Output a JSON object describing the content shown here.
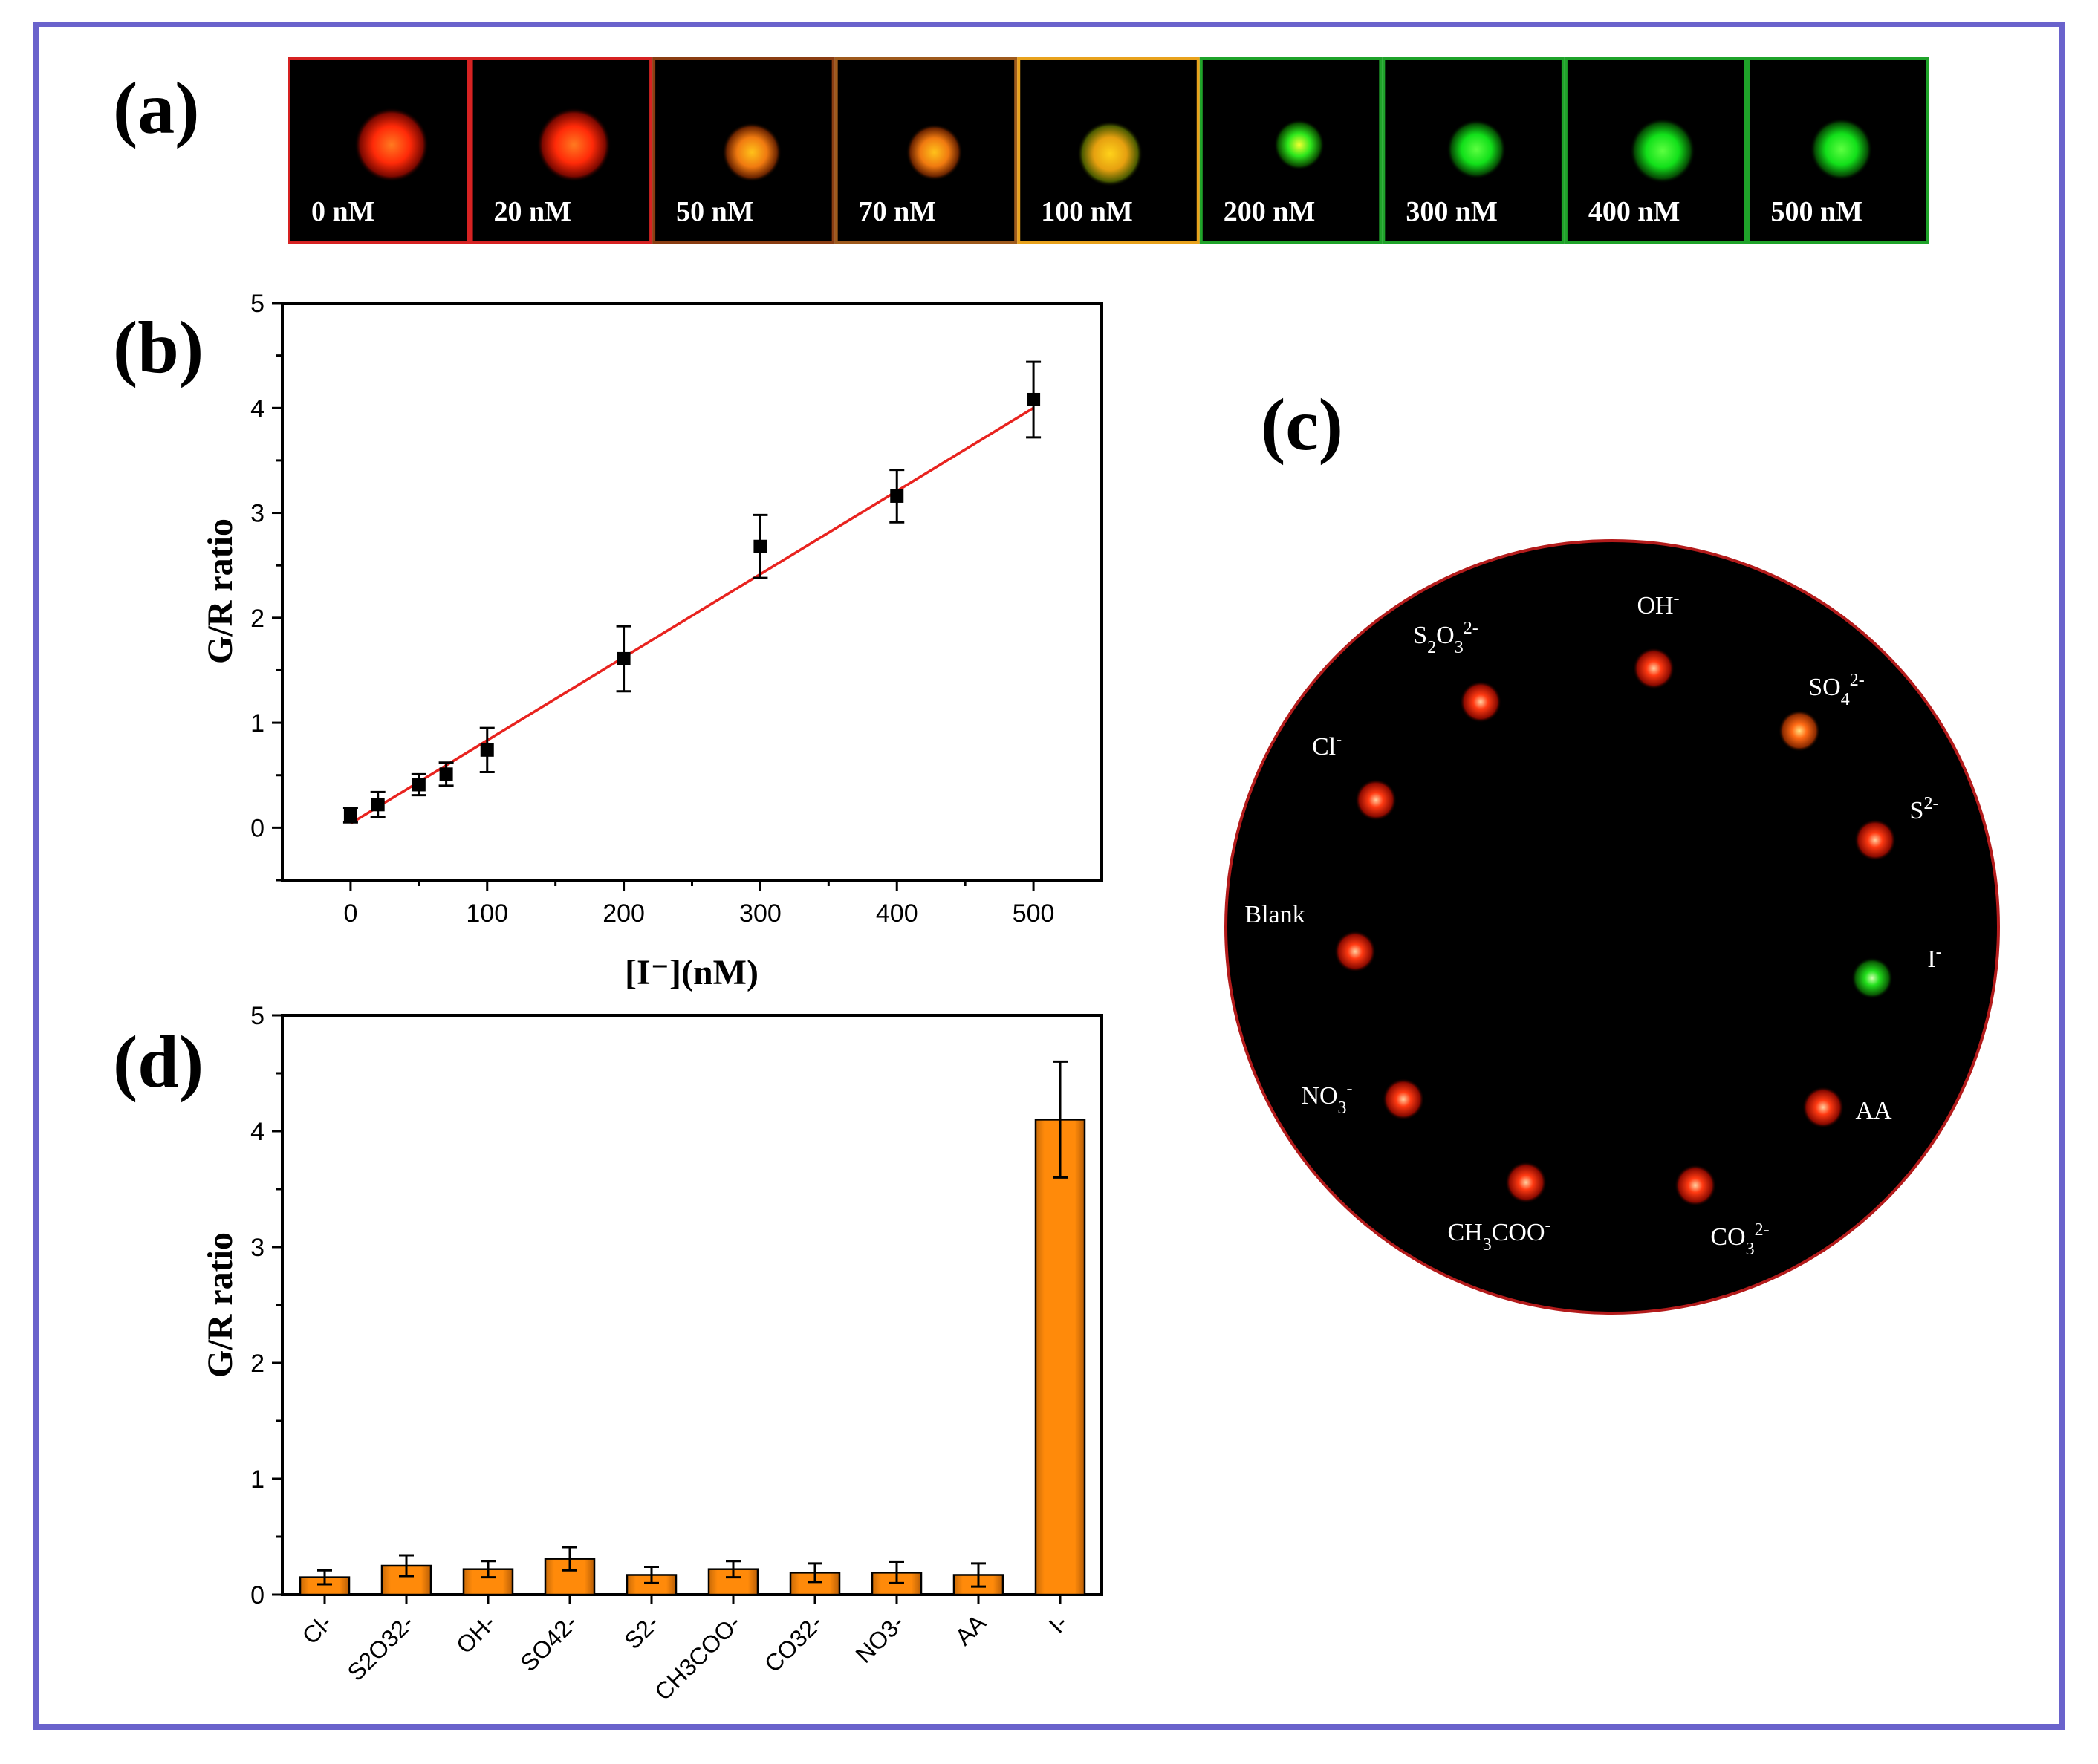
{
  "panels": {
    "a": "(a)",
    "b": "(b)",
    "c": "(c)",
    "d": "(d)"
  },
  "colors": {
    "frame": "#6a63cc",
    "fit_line": "#e8231f",
    "bar_fill": "#ff8a0a",
    "dish_border": "#b31b1b"
  },
  "strip": {
    "frames": [
      {
        "label": "0 nM",
        "border": "#d62222",
        "spot": "red"
      },
      {
        "label": "20 nM",
        "border": "#d62222",
        "spot": "red"
      },
      {
        "label": "50 nM",
        "border": "#8a3d12",
        "spot": "orange"
      },
      {
        "label": "70 nM",
        "border": "#9e5a1c",
        "spot": "orange"
      },
      {
        "label": "100 nM",
        "border": "#e8a21c",
        "spot": "yellow"
      },
      {
        "label": "200 nM",
        "border": "#1fa32a",
        "spot": "green-yellow"
      },
      {
        "label": "300 nM",
        "border": "#1fa32a",
        "spot": "green"
      },
      {
        "label": "400 nM",
        "border": "#1fa32a",
        "spot": "green"
      },
      {
        "label": "500 nM",
        "border": "#1fa32a",
        "spot": "green"
      }
    ]
  },
  "dish": {
    "spots": [
      {
        "label": "OH-",
        "color": "red"
      },
      {
        "label": "S2O32-",
        "color": "red"
      },
      {
        "label": "SO42-",
        "color": "orange"
      },
      {
        "label": "Cl-",
        "color": "red"
      },
      {
        "label": "S2-",
        "color": "red"
      },
      {
        "label": "Blank",
        "color": "red"
      },
      {
        "label": "I-",
        "color": "green"
      },
      {
        "label": "NO3-",
        "color": "red"
      },
      {
        "label": "AA",
        "color": "red"
      },
      {
        "label": "CH3COO-",
        "color": "red"
      },
      {
        "label": "CO32-",
        "color": "red"
      }
    ]
  },
  "chart_data": [
    {
      "id": "b",
      "type": "scatter",
      "xlabel": "[I⁻](nM)",
      "ylabel": "G/R ratio",
      "xlim": [
        -50,
        550
      ],
      "ylim": [
        -0.5,
        5
      ],
      "xticks": [
        0,
        100,
        200,
        300,
        400,
        500
      ],
      "yticks": [
        0,
        1,
        2,
        3,
        4,
        5
      ],
      "x": [
        0,
        20,
        50,
        70,
        100,
        200,
        300,
        400,
        500
      ],
      "y": [
        0.12,
        0.22,
        0.41,
        0.51,
        0.74,
        1.61,
        2.68,
        3.16,
        4.08
      ],
      "error": [
        0.07,
        0.12,
        0.1,
        0.11,
        0.21,
        0.31,
        0.3,
        0.25,
        0.36
      ],
      "fit": {
        "x": [
          0,
          500
        ],
        "y": [
          0.04,
          4.0
        ]
      }
    },
    {
      "id": "d",
      "type": "bar",
      "ylabel": "G/R ratio",
      "ylim": [
        0,
        5
      ],
      "yticks": [
        0,
        1,
        2,
        3,
        4,
        5
      ],
      "categories": [
        "Cl-",
        "S2O32-",
        "OH-",
        "SO42-",
        "S2-",
        "CH3COO-",
        "CO32-",
        "NO3-",
        "AA",
        "I-"
      ],
      "values": [
        0.15,
        0.25,
        0.22,
        0.31,
        0.17,
        0.22,
        0.19,
        0.19,
        0.17,
        4.1
      ],
      "error": [
        0.06,
        0.09,
        0.07,
        0.1,
        0.07,
        0.07,
        0.08,
        0.09,
        0.1,
        0.5
      ]
    }
  ]
}
